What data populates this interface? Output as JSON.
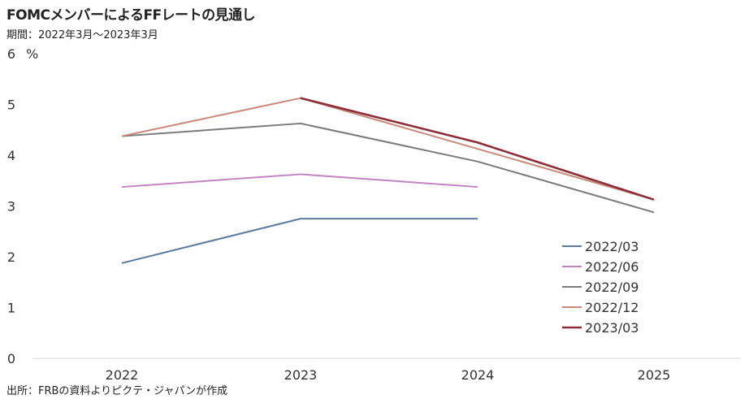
{
  "title": "FOMCメンバーによるFFレートの見通し",
  "subtitle": "期間：2022年3月～2023年3月",
  "source": "出所：FRBの資料よりピクテ・ジャパンが作成",
  "chart_data": {
    "type": "line",
    "unit_label": "%",
    "categories": [
      "2022",
      "2023",
      "2024",
      "2025"
    ],
    "ylim": [
      0,
      6
    ],
    "yticks": [
      "0",
      "1",
      "2",
      "3",
      "4",
      "5",
      "6"
    ],
    "grid": false,
    "legend_position": "bottom-right",
    "series": [
      {
        "name": "2022/03",
        "color": "#5b7a9d",
        "values": [
          1.875,
          2.75,
          2.75,
          null
        ]
      },
      {
        "name": "2022/06",
        "color": "#c084c0",
        "values": [
          3.375,
          3.625,
          3.375,
          null
        ]
      },
      {
        "name": "2022/09",
        "color": "#7a7a7a",
        "values": [
          4.375,
          4.625,
          3.875,
          2.875
        ]
      },
      {
        "name": "2022/12",
        "color": "#c8897a",
        "values": [
          4.375,
          5.125,
          4.125,
          3.125
        ]
      },
      {
        "name": "2023/03",
        "color": "#8b2e3a",
        "values": [
          null,
          5.125,
          4.25,
          3.125
        ]
      }
    ]
  }
}
